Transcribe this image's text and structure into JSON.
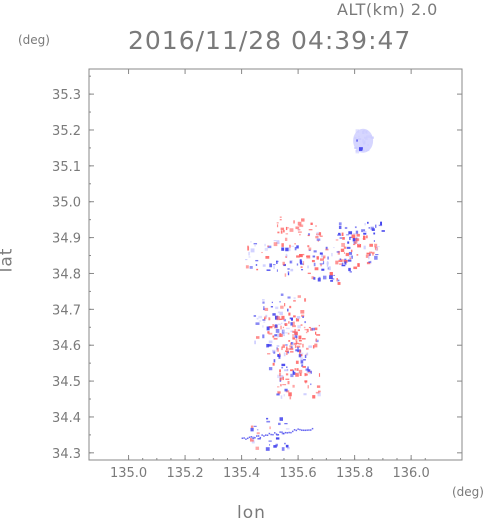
{
  "header": {
    "alt": "ALT(km) 2.0",
    "timestamp": "2016/11/28 04:39:47"
  },
  "axes": {
    "y_unit": "(deg)",
    "x_unit": "(deg)"
  },
  "chart_data": {
    "type": "heatmap",
    "title": "2016/11/28 04:39:47",
    "subtitle": "ALT(km) 2.0",
    "xlabel": "lon",
    "ylabel": "lat",
    "xlim": [
      134.86,
      136.18
    ],
    "ylim": [
      34.28,
      35.37
    ],
    "x_ticks": [
      "135.0",
      "135.2",
      "135.4",
      "135.6",
      "135.8",
      "136.0"
    ],
    "y_ticks": [
      "34.3",
      "34.4",
      "34.5",
      "34.6",
      "34.7",
      "34.8",
      "34.9",
      "35.0",
      "35.1",
      "35.2",
      "35.3"
    ],
    "grid": false,
    "colors": {
      "positive": "#ff6666",
      "negative": "#4444ee",
      "near_zero": "#ccccff",
      "frame": "#888888"
    },
    "clusters": [
      {
        "lon": 135.83,
        "lat": 35.17,
        "sign": "near_zero",
        "intensity": 0.4
      },
      {
        "lon": 135.6,
        "lat": 34.92,
        "sign": "positive",
        "intensity": 0.7
      },
      {
        "lon": 135.82,
        "lat": 34.9,
        "sign": "negative",
        "intensity": 0.6
      },
      {
        "lon": 135.8,
        "lat": 34.87,
        "sign": "positive",
        "intensity": 0.8
      },
      {
        "lon": 135.48,
        "lat": 34.85,
        "sign": "mixed",
        "intensity": 0.6
      },
      {
        "lon": 135.63,
        "lat": 34.83,
        "sign": "mixed",
        "intensity": 0.7
      },
      {
        "lon": 135.72,
        "lat": 34.82,
        "sign": "negative",
        "intensity": 0.6
      },
      {
        "lon": 135.55,
        "lat": 34.7,
        "sign": "mixed",
        "intensity": 0.7
      },
      {
        "lon": 135.52,
        "lat": 34.64,
        "sign": "mixed",
        "intensity": 0.9
      },
      {
        "lon": 135.6,
        "lat": 34.62,
        "sign": "positive",
        "intensity": 0.9
      },
      {
        "lon": 135.56,
        "lat": 34.56,
        "sign": "mixed",
        "intensity": 0.8
      },
      {
        "lon": 135.6,
        "lat": 34.5,
        "sign": "positive",
        "intensity": 0.7
      },
      {
        "lon": 135.5,
        "lat": 34.36,
        "sign": "negative",
        "intensity": 0.5
      }
    ]
  }
}
